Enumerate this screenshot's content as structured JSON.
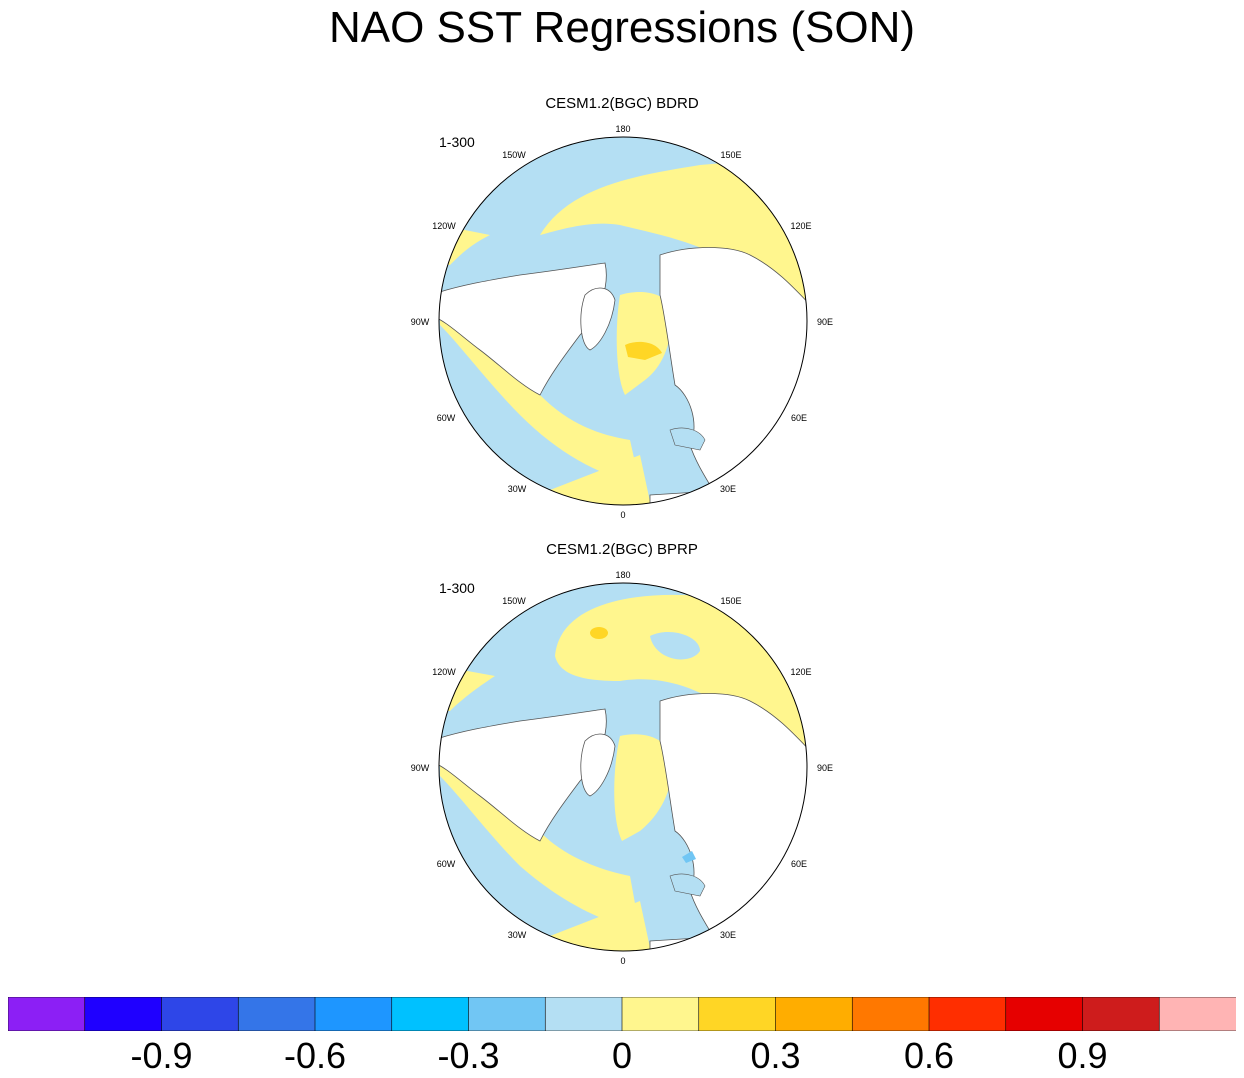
{
  "title": "NAO SST Regressions (SON)",
  "panels": [
    {
      "title": "CESM1.2(BGC) BDRD",
      "tag": "1-300",
      "lon_labels": [
        "180",
        "150E",
        "120E",
        "90E",
        "60E",
        "30E",
        "0",
        "30W",
        "60W",
        "90W",
        "120W",
        "150W"
      ]
    },
    {
      "title": "CESM1.2(BGC) BPRP",
      "tag": "1-300",
      "lon_labels": [
        "180",
        "150E",
        "120E",
        "90E",
        "60E",
        "30E",
        "0",
        "30W",
        "60W",
        "90W",
        "120W",
        "150W"
      ]
    }
  ],
  "chart_data": {
    "type": "polar-stereographic map",
    "variable": "SST regression on NAO index",
    "season": "SON",
    "contour_levels": [
      -1.05,
      -0.9,
      -0.75,
      -0.6,
      -0.45,
      -0.3,
      -0.15,
      0,
      0.15,
      0.3,
      0.45,
      0.6,
      0.75,
      0.9,
      1.05
    ],
    "colorbar_colors": [
      "#8c1ff5",
      "#1f00ff",
      "#2e46e8",
      "#3475e8",
      "#1e96ff",
      "#00c1ff",
      "#71c6f4",
      "#b4dff3",
      "#fff68e",
      "#ffd625",
      "#ffad00",
      "#ff7800",
      "#ff2e00",
      "#e60000",
      "#ce1c1c",
      "#ffb4b4"
    ],
    "colorbar_labels": [
      "-0.9",
      "-0.6",
      "-0.3",
      "0",
      "0.3",
      "0.6",
      "0.9"
    ]
  }
}
